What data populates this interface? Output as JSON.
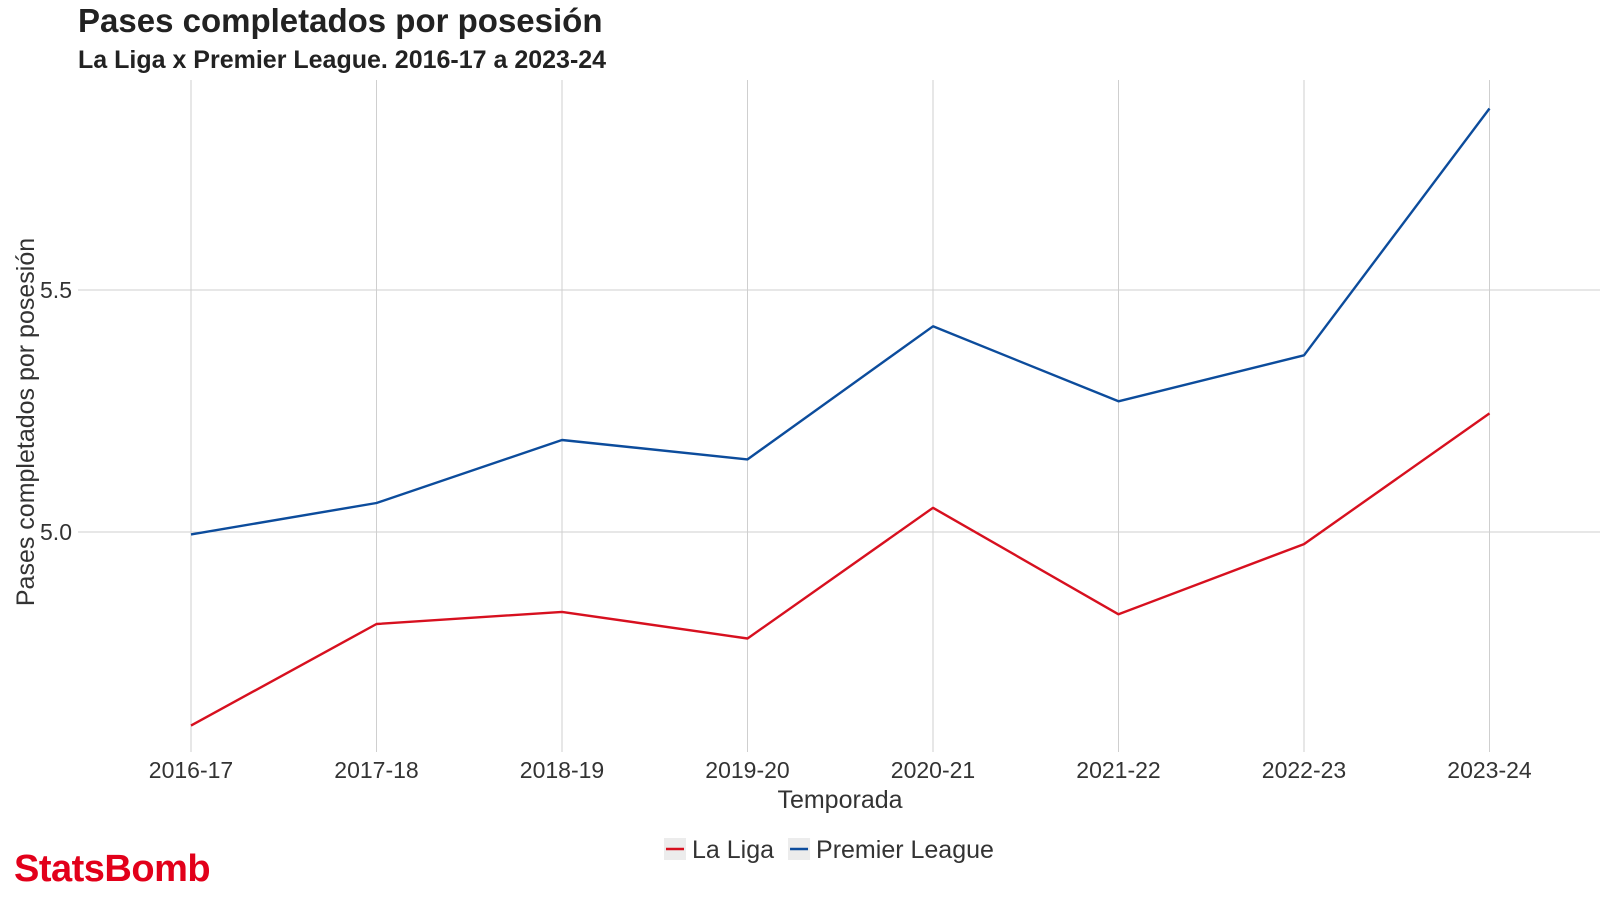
{
  "branding": {
    "logo_text": "StatsBomb"
  },
  "colors": {
    "la_liga": "#d7101f",
    "premier_league": "#0c4c9c",
    "grid": "#cfcfcf",
    "legend_key_bg": "#ececec"
  },
  "chart_data": {
    "type": "line",
    "title": "Pases completados por posesión",
    "subtitle": "La Liga x Premier League. 2016-17 a 2023-24",
    "xlabel": "Temporada",
    "ylabel": "Pases completados por posesión",
    "categories": [
      "2016-17",
      "2017-18",
      "2018-19",
      "2019-20",
      "2020-21",
      "2021-22",
      "2022-23",
      "2023-24"
    ],
    "y_ticks": [
      5.0,
      5.5
    ],
    "ylim": [
      4.55,
      5.94
    ],
    "grid": true,
    "legend_position": "bottom",
    "series": [
      {
        "name": "La Liga",
        "color": "#d7101f",
        "values": [
          4.6,
          4.81,
          4.835,
          4.78,
          5.05,
          4.83,
          4.975,
          5.245
        ]
      },
      {
        "name": "Premier League",
        "color": "#0c4c9c",
        "values": [
          4.995,
          5.06,
          5.19,
          5.15,
          5.425,
          5.27,
          5.365,
          5.875
        ]
      }
    ]
  }
}
